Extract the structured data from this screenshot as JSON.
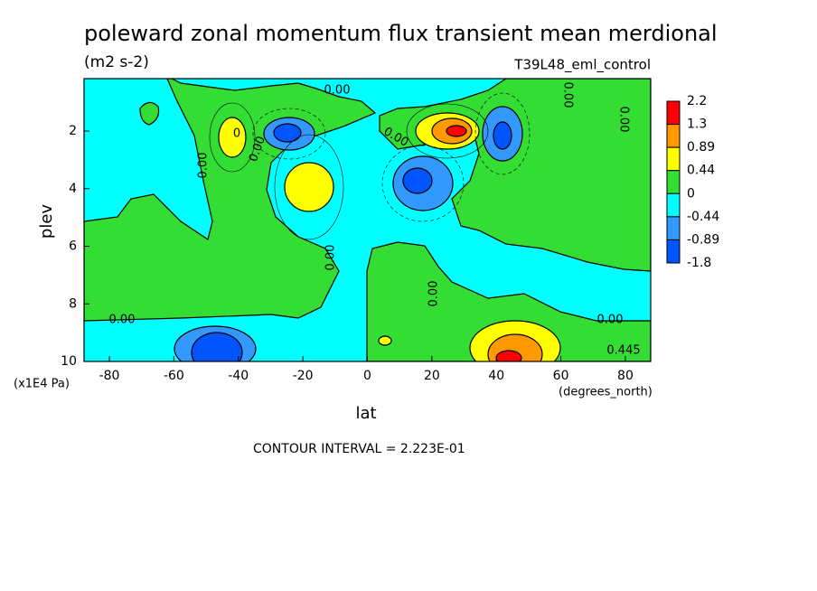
{
  "chart_data": {
    "type": "contour",
    "title": "poleward zonal momentum flux transient mean merdional",
    "subtitle": "(m2 s-2)",
    "dataset": "T39L48_eml_control",
    "x_label": "lat",
    "x_units": "(degrees_north)",
    "y_label": "plev",
    "y_units": "(x1E4 Pa)",
    "xlim": [
      -87.86,
      87.86
    ],
    "xticks": [
      -80,
      -60,
      -40,
      -20,
      0,
      20,
      40,
      60,
      80
    ],
    "ylim": [
      10,
      0.18
    ],
    "yticks": [
      2,
      4,
      6,
      8,
      10
    ],
    "levels": [
      2.2,
      1.3,
      0.89,
      0.44,
      0,
      -0.44,
      -0.89,
      -1.8
    ],
    "level_colors": [
      "#ff0000",
      "#ff9900",
      "#ffff00",
      "#33dd33",
      "#00ffff",
      "#3399ff",
      "#0055ff"
    ],
    "contour_labels": [
      "0.00",
      "0.00",
      "0.00",
      "0.00",
      "0.00",
      "0.00",
      "0.00",
      "0.00",
      "0.00",
      "0.00",
      "0.445",
      "0"
    ],
    "contour_interval_text": "CONTOUR INTERVAL = 2.223E-01"
  }
}
